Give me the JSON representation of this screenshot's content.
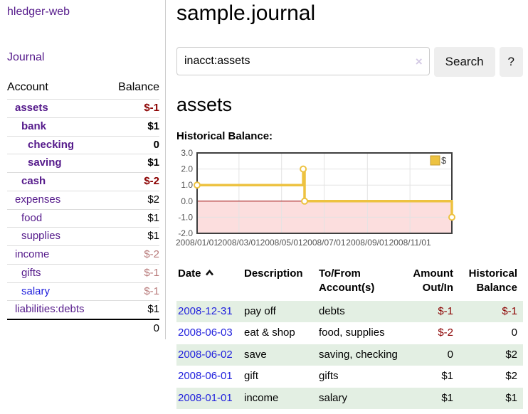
{
  "app": {
    "brand": "hledger-web",
    "nav_journal": "Journal"
  },
  "sidebar": {
    "header": {
      "account": "Account",
      "balance": "Balance"
    },
    "rows": [
      {
        "account": "assets",
        "balance": "$-1",
        "level": 1,
        "bold": true,
        "balance_class": "bal-neg"
      },
      {
        "account": "bank",
        "balance": "$1",
        "level": 2,
        "bold": true,
        "balance_class": ""
      },
      {
        "account": "checking",
        "balance": "0",
        "level": 3,
        "bold": true,
        "balance_class": ""
      },
      {
        "account": "saving",
        "balance": "$1",
        "level": 3,
        "bold": true,
        "balance_class": ""
      },
      {
        "account": "cash",
        "balance": "$-2",
        "level": 2,
        "bold": true,
        "balance_class": "bal-neg"
      },
      {
        "account": "expenses",
        "balance": "$2",
        "level": 1,
        "bold": false,
        "balance_class": ""
      },
      {
        "account": "food",
        "balance": "$1",
        "level": 2,
        "bold": false,
        "balance_class": ""
      },
      {
        "account": "supplies",
        "balance": "$1",
        "level": 2,
        "bold": false,
        "balance_class": ""
      },
      {
        "account": "income",
        "balance": "$-2",
        "level": 1,
        "bold": false,
        "balance_class": "bal-faded"
      },
      {
        "account": "gifts",
        "balance": "$-1",
        "level": 2,
        "bold": false,
        "balance_class": "bal-faded"
      },
      {
        "account": "salary",
        "balance": "$-1",
        "level": 2,
        "bold": false,
        "balance_class": "bal-faded",
        "link": "blue"
      },
      {
        "account": "liabilities:debts",
        "balance": "$1",
        "level": 1,
        "bold": false,
        "balance_class": ""
      }
    ],
    "total": "0"
  },
  "main": {
    "title": "sample.journal",
    "search": {
      "value": "inacct:assets",
      "clear_icon": "×",
      "button_label": "Search",
      "help_label": "?"
    },
    "account_heading": "assets",
    "chart_heading": "Historical Balance:"
  },
  "chart_data": {
    "type": "line",
    "step": true,
    "title": "Historical Balance",
    "series": [
      {
        "name": "$",
        "color": "#edc240",
        "points": [
          [
            "2008-01-01",
            1.0
          ],
          [
            "2008-06-01",
            2.0
          ],
          [
            "2008-06-03",
            0.0
          ],
          [
            "2008-12-31",
            -1.0
          ]
        ]
      }
    ],
    "x_range": [
      "2008-01-01",
      "2008-12-31"
    ],
    "ylim": [
      -2.0,
      3.0
    ],
    "y_ticks": [
      3.0,
      2.0,
      1.0,
      0.0,
      -1.0,
      -2.0
    ],
    "x_ticks": [
      "2008/01/01",
      "2008/03/01",
      "2008/05/01",
      "2008/07/01",
      "2008/09/01",
      "2008/11/01"
    ],
    "grid": true,
    "legend": {
      "label": "$",
      "position": "top-right"
    },
    "negative_region_color": "#fcdede",
    "zero_line_color": "#990000"
  },
  "register": {
    "headers": [
      {
        "line1": "Date",
        "line2": ""
      },
      {
        "line1": "Description",
        "line2": ""
      },
      {
        "line1": "To/From",
        "line2": "Account(s)"
      },
      {
        "line1": "Amount",
        "line2": "Out/In"
      },
      {
        "line1": "Historical",
        "line2": "Balance"
      }
    ],
    "sort_icon": "chevron-up",
    "rows": [
      {
        "date": "2008-12-31",
        "description": "pay off",
        "accounts": "debts",
        "amount": "$-1",
        "amount_class": "amt-neg",
        "balance": "$-1",
        "balance_class": "amt-neg"
      },
      {
        "date": "2008-06-03",
        "description": "eat & shop",
        "accounts": "food, supplies",
        "amount": "$-2",
        "amount_class": "amt-neg",
        "balance": "0",
        "balance_class": ""
      },
      {
        "date": "2008-06-02",
        "description": "save",
        "accounts": "saving, checking",
        "amount": "0",
        "amount_class": "",
        "balance": "$2",
        "balance_class": ""
      },
      {
        "date": "2008-06-01",
        "description": "gift",
        "accounts": "gifts",
        "amount": "$1",
        "amount_class": "",
        "balance": "$2",
        "balance_class": ""
      },
      {
        "date": "2008-01-01",
        "description": "income",
        "accounts": "salary",
        "amount": "$1",
        "amount_class": "",
        "balance": "$1",
        "balance_class": ""
      }
    ]
  },
  "colors": {
    "purple": "#551a8b",
    "linkblue": "#2222dd",
    "neg": "#8b0000",
    "negfaded": "#b87a7a",
    "rowgreen": "#e3efe3",
    "gold": "#edc240",
    "pink": "#fcdede",
    "zero": "#990000"
  }
}
